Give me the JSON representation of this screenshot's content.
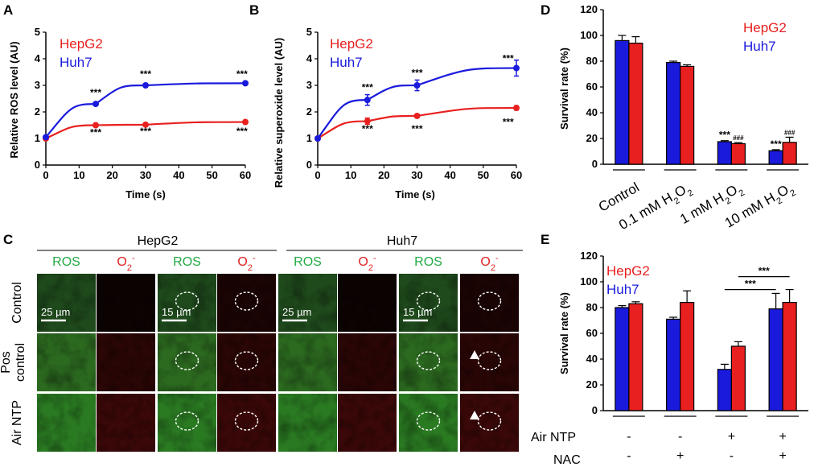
{
  "panels": {
    "A": {
      "letter": "A"
    },
    "B": {
      "letter": "B"
    },
    "C": {
      "letter": "C"
    },
    "D": {
      "letter": "D"
    },
    "E": {
      "letter": "E"
    }
  },
  "legend": {
    "hepg2": "HepG2",
    "huh7": "Huh7"
  },
  "colors": {
    "hepg2": "#e8201f",
    "huh7": "#1a1adc",
    "ros": "#22aa44",
    "o2": "#dd2222"
  },
  "chart_data": [
    {
      "id": "A",
      "type": "line",
      "xlabel": "Time (s)",
      "ylabel": "Relative ROS level (AU)",
      "xlim": [
        0,
        60
      ],
      "ylim": [
        0,
        5
      ],
      "xticks": [
        0,
        10,
        20,
        30,
        40,
        50,
        60
      ],
      "yticks": [
        0,
        1,
        2,
        3,
        4,
        5
      ],
      "series": [
        {
          "name": "HepG2",
          "x": [
            0,
            15,
            30,
            60
          ],
          "y": [
            1.0,
            1.5,
            1.52,
            1.62
          ],
          "err": [
            0.05,
            0.05,
            0.03,
            0.06
          ]
        },
        {
          "name": "Huh7",
          "x": [
            0,
            15,
            30,
            60
          ],
          "y": [
            1.05,
            2.3,
            3.0,
            3.08
          ],
          "err": [
            0.05,
            0.06,
            0.04,
            0.05
          ]
        }
      ],
      "annotations": [
        {
          "text": "***",
          "x": 15,
          "y": 2.6
        },
        {
          "text": "***",
          "x": 30,
          "y": 3.3
        },
        {
          "text": "***",
          "x": 59,
          "y": 3.3
        },
        {
          "text": "***",
          "x": 15,
          "y": 1.1
        },
        {
          "text": "***",
          "x": 30,
          "y": 1.15
        },
        {
          "text": "***",
          "x": 59,
          "y": 1.15
        }
      ]
    },
    {
      "id": "B",
      "type": "line",
      "xlabel": "Time (s)",
      "ylabel": "Relative superoxide level (AU)",
      "xlim": [
        0,
        60
      ],
      "ylim": [
        0,
        5
      ],
      "xticks": [
        0,
        10,
        20,
        30,
        40,
        50,
        60
      ],
      "yticks": [
        0,
        1,
        2,
        3,
        4,
        5
      ],
      "series": [
        {
          "name": "HepG2",
          "x": [
            0,
            15,
            30,
            60
          ],
          "y": [
            1.0,
            1.65,
            1.85,
            2.15
          ],
          "err": [
            0.05,
            0.12,
            0.06,
            0.08
          ]
        },
        {
          "name": "Huh7",
          "x": [
            0,
            15,
            30,
            60
          ],
          "y": [
            1.0,
            2.45,
            3.0,
            3.65
          ],
          "err": [
            0.05,
            0.2,
            0.2,
            0.3
          ]
        }
      ],
      "annotations": [
        {
          "text": "***",
          "x": 15,
          "y": 2.8
        },
        {
          "text": "***",
          "x": 30,
          "y": 3.35
        },
        {
          "text": "***",
          "x": 57.5,
          "y": 3.9
        },
        {
          "text": "***",
          "x": 15,
          "y": 1.25
        },
        {
          "text": "***",
          "x": 30,
          "y": 1.25
        },
        {
          "text": "***",
          "x": 57.5,
          "y": 1.5
        }
      ]
    },
    {
      "id": "D",
      "type": "bar",
      "ylabel": "Survival rate (%)",
      "ylim": [
        0,
        120
      ],
      "yticks": [
        0,
        20,
        40,
        60,
        80,
        100,
        120
      ],
      "categories": [
        "Control",
        "0.1 mM H2O2",
        "1 mM H2O2",
        "10 mM H2O2"
      ],
      "series": [
        {
          "name": "Huh7",
          "values": [
            96,
            79,
            17.5,
            10.5
          ],
          "err": [
            4,
            1,
            0.8,
            0.8
          ],
          "marks": [
            "",
            "",
            "***",
            "***"
          ]
        },
        {
          "name": "HepG2",
          "values": [
            94,
            76,
            16,
            17
          ],
          "err": [
            5,
            1.2,
            0.8,
            4
          ],
          "marks": [
            "",
            "",
            "###",
            "###"
          ]
        }
      ]
    },
    {
      "id": "E",
      "type": "bar",
      "ylabel": "Survival rate (%)",
      "ylim": [
        0,
        120
      ],
      "yticks": [
        0,
        20,
        40,
        60,
        80,
        100,
        120
      ],
      "row_labels": [
        "Air NTP",
        "NAC"
      ],
      "conditions": [
        {
          "air_ntp": "-",
          "nac": "-"
        },
        {
          "air_ntp": "-",
          "nac": "+"
        },
        {
          "air_ntp": "+",
          "nac": "-"
        },
        {
          "air_ntp": "+",
          "nac": "+"
        }
      ],
      "series": [
        {
          "name": "Huh7",
          "values": [
            80,
            71,
            32,
            79
          ],
          "err": [
            1.5,
            1.5,
            4,
            12
          ]
        },
        {
          "name": "HepG2",
          "values": [
            83,
            84,
            50,
            84
          ],
          "err": [
            1.5,
            9,
            3.5,
            10
          ]
        }
      ],
      "brackets": [
        {
          "text": "***",
          "from": 2,
          "to": 3,
          "level": 104
        },
        {
          "text": "***",
          "from": 2,
          "to": 3,
          "level": 94
        }
      ]
    }
  ],
  "micrographs": {
    "groups": [
      "HepG2",
      "Huh7"
    ],
    "columns": [
      "ROS",
      "O2-",
      "ROS",
      "O2-",
      "ROS",
      "O2-",
      "ROS",
      "O2-"
    ],
    "rows": [
      "Control",
      "Pos control",
      "Air NTP"
    ],
    "scale_labels": [
      "25 µm",
      "15 µm",
      "25 µm",
      "15 µm"
    ]
  }
}
